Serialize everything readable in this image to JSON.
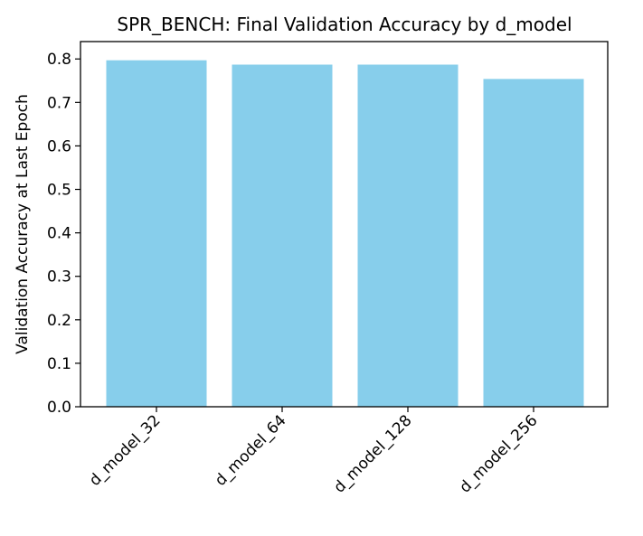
{
  "chart_data": {
    "type": "bar",
    "title": "SPR_BENCH: Final Validation Accuracy by d_model",
    "xlabel": "",
    "ylabel": "Validation Accuracy at Last Epoch",
    "categories": [
      "d_model_32",
      "d_model_64",
      "d_model_128",
      "d_model_256"
    ],
    "values": [
      0.797,
      0.787,
      0.787,
      0.754
    ],
    "ylim": [
      0,
      0.84
    ],
    "yticks": [
      "0.0",
      "0.1",
      "0.2",
      "0.3",
      "0.4",
      "0.5",
      "0.6",
      "0.7",
      "0.8"
    ],
    "bar_color": "#87ceeb",
    "grid": false,
    "legend": "none"
  }
}
